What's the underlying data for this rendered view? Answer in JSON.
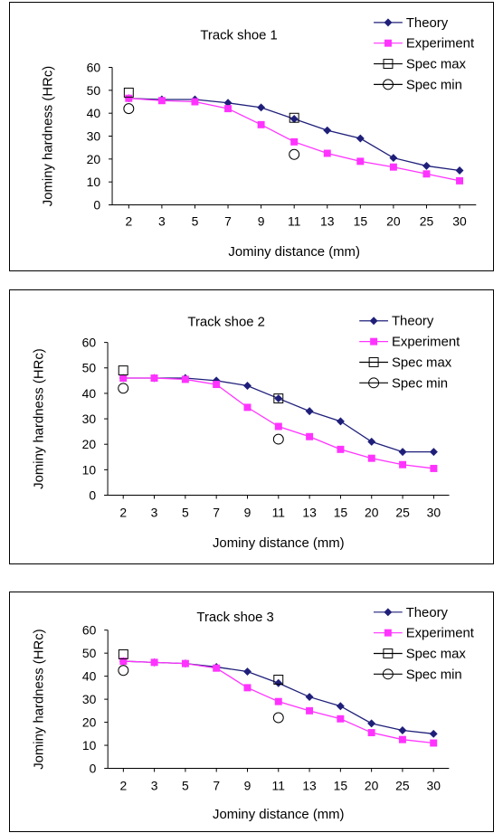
{
  "chart_data": [
    {
      "type": "line",
      "title": "Track shoe 1",
      "xlabel": "Jominy distance (mm)",
      "ylabel": "Jominy hardness (HRc)",
      "ylim": [
        0,
        60
      ],
      "yticks": [
        "0",
        "10",
        "20",
        "30",
        "40",
        "50",
        "60"
      ],
      "categories": [
        "2",
        "3",
        "5",
        "7",
        "9",
        "11",
        "13",
        "15",
        "20",
        "25",
        "30"
      ],
      "series": [
        {
          "name": "Theory",
          "color": "#1f1f7a",
          "marker": "diamond-filled",
          "values": [
            46.5,
            46,
            46,
            44.5,
            42.5,
            37.5,
            32.5,
            29,
            20.5,
            17,
            15
          ]
        },
        {
          "name": "Experiment",
          "color": "#ff33ff",
          "marker": "square-filled",
          "values": [
            46.5,
            45.5,
            45,
            42,
            35,
            27.5,
            22.5,
            19,
            16.5,
            13.5,
            10.5
          ]
        },
        {
          "name": "Spec max",
          "color": "#000000",
          "marker": "square-open",
          "points": [
            [
              0,
              49
            ],
            [
              5,
              38
            ]
          ]
        },
        {
          "name": "Spec min",
          "color": "#000000",
          "marker": "circle-open",
          "points": [
            [
              0,
              42
            ],
            [
              5,
              22
            ]
          ]
        }
      ],
      "legend": "top-right"
    },
    {
      "type": "line",
      "title": "Track shoe 2",
      "xlabel": "Jominy distance (mm)",
      "ylabel": "Jominy hardness (HRc)",
      "ylim": [
        0,
        60
      ],
      "yticks": [
        "0",
        "10",
        "20",
        "30",
        "40",
        "50",
        "60"
      ],
      "categories": [
        "2",
        "3",
        "5",
        "7",
        "9",
        "11",
        "13",
        "15",
        "20",
        "25",
        "30"
      ],
      "series": [
        {
          "name": "Theory",
          "color": "#1f1f7a",
          "marker": "diamond-filled",
          "values": [
            46,
            46,
            46,
            45,
            43,
            38,
            33,
            29,
            21,
            17,
            17
          ]
        },
        {
          "name": "Experiment",
          "color": "#ff33ff",
          "marker": "square-filled",
          "values": [
            46,
            46,
            45.5,
            43.5,
            34.5,
            27,
            23,
            18,
            14.5,
            12,
            10.5
          ]
        },
        {
          "name": "Spec max",
          "color": "#000000",
          "marker": "square-open",
          "points": [
            [
              0,
              49
            ],
            [
              5,
              38
            ]
          ]
        },
        {
          "name": "Spec min",
          "color": "#000000",
          "marker": "circle-open",
          "points": [
            [
              0,
              42
            ],
            [
              5,
              22
            ]
          ]
        }
      ],
      "legend": "top-right"
    },
    {
      "type": "line",
      "title": "Track shoe 3",
      "xlabel": "Jominy distance (mm)",
      "ylabel": "Jominy hardness (HRc)",
      "ylim": [
        0,
        60
      ],
      "yticks": [
        "0",
        "10",
        "20",
        "30",
        "40",
        "50",
        "60"
      ],
      "categories": [
        "2",
        "3",
        "5",
        "7",
        "9",
        "11",
        "13",
        "15",
        "20",
        "25",
        "30"
      ],
      "series": [
        {
          "name": "Theory",
          "color": "#1f1f7a",
          "marker": "diamond-filled",
          "values": [
            46.5,
            46,
            45.5,
            44,
            42,
            37,
            31,
            27,
            19.5,
            16.5,
            15
          ]
        },
        {
          "name": "Experiment",
          "color": "#ff33ff",
          "marker": "square-filled",
          "values": [
            46.5,
            46,
            45.5,
            43.5,
            35,
            29,
            25,
            21.5,
            15.5,
            12.5,
            11
          ]
        },
        {
          "name": "Spec max",
          "color": "#000000",
          "marker": "square-open",
          "points": [
            [
              0,
              49.5
            ],
            [
              5,
              38.5
            ]
          ]
        },
        {
          "name": "Spec min",
          "color": "#000000",
          "marker": "circle-open",
          "points": [
            [
              0,
              42.5
            ],
            [
              5,
              22
            ]
          ]
        }
      ],
      "legend": "top-right"
    }
  ]
}
